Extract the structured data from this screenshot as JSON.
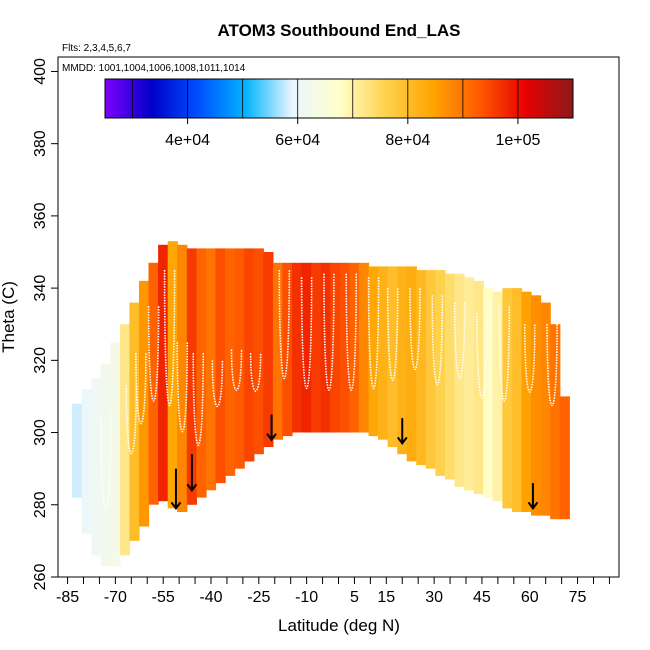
{
  "chart_data": {
    "type": "heatmap",
    "title": "ATOM3 Southbound End_LAS",
    "subtitle_flights": "Flts: 2,3,4,5,6,7",
    "subtitle_dates": "MMDD: 1001,1004,1006,1008,1011,1014",
    "xlabel": "Latitude (deg N)",
    "ylabel": "Theta (C)",
    "xlim": [
      -88,
      88
    ],
    "ylim": [
      260,
      404
    ],
    "x_ticks": [
      -85,
      -70,
      -55,
      -40,
      -25,
      -10,
      5,
      15,
      30,
      45,
      60,
      75
    ],
    "y_ticks": [
      260,
      280,
      300,
      320,
      340,
      360,
      380,
      400
    ],
    "colorbar": {
      "range": [
        25000,
        110000
      ],
      "ticks": [
        40000,
        60000,
        80000,
        100000
      ],
      "tick_labels": [
        "4e+04",
        "6e+04",
        "8e+04",
        "1e+05"
      ],
      "colors": [
        "#7f00ff",
        "#0000c8",
        "#0050ff",
        "#00b4ff",
        "#eaf6ff",
        "#ffffcc",
        "#ffd24d",
        "#ffa500",
        "#ff5a00",
        "#e60000",
        "#8b1a1a"
      ]
    },
    "columns": [
      {
        "lat": -82,
        "bot": 282,
        "top": 308,
        "value": 58000
      },
      {
        "lat": -79,
        "bot": 272,
        "top": 312,
        "value": 60000
      },
      {
        "lat": -76,
        "bot": 266,
        "top": 315,
        "value": 61000
      },
      {
        "lat": -73,
        "bot": 263,
        "top": 319,
        "value": 62000
      },
      {
        "lat": -70,
        "bot": 263,
        "top": 325,
        "value": 63000
      },
      {
        "lat": -67,
        "bot": 266,
        "top": 330,
        "value": 72000
      },
      {
        "lat": -64,
        "bot": 270,
        "top": 336,
        "value": 80000
      },
      {
        "lat": -61,
        "bot": 274,
        "top": 342,
        "value": 86000
      },
      {
        "lat": -58,
        "bot": 280,
        "top": 347,
        "value": 92000
      },
      {
        "lat": -55,
        "bot": 281,
        "top": 352,
        "value": 98000
      },
      {
        "lat": -52,
        "bot": 279,
        "top": 353,
        "value": 84000
      },
      {
        "lat": -49,
        "bot": 278,
        "top": 352,
        "value": 88000
      },
      {
        "lat": -46,
        "bot": 280,
        "top": 351,
        "value": 96000
      },
      {
        "lat": -43,
        "bot": 282,
        "top": 351,
        "value": 92000
      },
      {
        "lat": -40,
        "bot": 284,
        "top": 351,
        "value": 90000
      },
      {
        "lat": -37,
        "bot": 286,
        "top": 351,
        "value": 94000
      },
      {
        "lat": -34,
        "bot": 288,
        "top": 351,
        "value": 92000
      },
      {
        "lat": -31,
        "bot": 290,
        "top": 351,
        "value": 93000
      },
      {
        "lat": -28,
        "bot": 292,
        "top": 351,
        "value": 95000
      },
      {
        "lat": -25,
        "bot": 294,
        "top": 351,
        "value": 94000
      },
      {
        "lat": -22,
        "bot": 296,
        "top": 350,
        "value": 96000
      },
      {
        "lat": -19,
        "bot": 298,
        "top": 347,
        "value": 90000
      },
      {
        "lat": -16,
        "bot": 299,
        "top": 347,
        "value": 94000
      },
      {
        "lat": -13,
        "bot": 300,
        "top": 347,
        "value": 97000
      },
      {
        "lat": -10,
        "bot": 300,
        "top": 347,
        "value": 98000
      },
      {
        "lat": -7,
        "bot": 300,
        "top": 347,
        "value": 96000
      },
      {
        "lat": -4,
        "bot": 300,
        "top": 347,
        "value": 97000
      },
      {
        "lat": -1,
        "bot": 300,
        "top": 347,
        "value": 95000
      },
      {
        "lat": 2,
        "bot": 300,
        "top": 347,
        "value": 94000
      },
      {
        "lat": 5,
        "bot": 300,
        "top": 347,
        "value": 92000
      },
      {
        "lat": 8,
        "bot": 300,
        "top": 347,
        "value": 88000
      },
      {
        "lat": 11,
        "bot": 299,
        "top": 346,
        "value": 84000
      },
      {
        "lat": 14,
        "bot": 298,
        "top": 346,
        "value": 82000
      },
      {
        "lat": 17,
        "bot": 296,
        "top": 346,
        "value": 80000
      },
      {
        "lat": 20,
        "bot": 294,
        "top": 346,
        "value": 82000
      },
      {
        "lat": 23,
        "bot": 292,
        "top": 346,
        "value": 83000
      },
      {
        "lat": 26,
        "bot": 291,
        "top": 345,
        "value": 81000
      },
      {
        "lat": 29,
        "bot": 290,
        "top": 345,
        "value": 78000
      },
      {
        "lat": 32,
        "bot": 288,
        "top": 345,
        "value": 76000
      },
      {
        "lat": 35,
        "bot": 287,
        "top": 344,
        "value": 74000
      },
      {
        "lat": 38,
        "bot": 285,
        "top": 344,
        "value": 72000
      },
      {
        "lat": 41,
        "bot": 284,
        "top": 343,
        "value": 71000
      },
      {
        "lat": 44,
        "bot": 283,
        "top": 342,
        "value": 72000
      },
      {
        "lat": 47,
        "bot": 282,
        "top": 340,
        "value": 68000
      },
      {
        "lat": 50,
        "bot": 281,
        "top": 339,
        "value": 70000
      },
      {
        "lat": 53,
        "bot": 279,
        "top": 340,
        "value": 78000
      },
      {
        "lat": 56,
        "bot": 278,
        "top": 340,
        "value": 80000
      },
      {
        "lat": 59,
        "bot": 278,
        "top": 339,
        "value": 85000
      },
      {
        "lat": 62,
        "bot": 277,
        "top": 338,
        "value": 87000
      },
      {
        "lat": 65,
        "bot": 277,
        "top": 336,
        "value": 88000
      },
      {
        "lat": 68,
        "bot": 276,
        "top": 330,
        "value": 90000
      },
      {
        "lat": 71,
        "bot": 276,
        "top": 310,
        "value": 92000
      }
    ],
    "arrows": [
      {
        "lat": -51,
        "top": 290,
        "bot": 279
      },
      {
        "lat": -46,
        "top": 294,
        "bot": 284
      },
      {
        "lat": -21,
        "top": 305,
        "bot": 298
      },
      {
        "lat": 20,
        "top": 304,
        "bot": 297
      },
      {
        "lat": 61,
        "top": 286,
        "bot": 279
      }
    ],
    "tropopause_loops": [
      {
        "lat": -73,
        "top": 305,
        "bot": 270
      },
      {
        "lat": -65,
        "top": 313,
        "bot": 288
      },
      {
        "lat": -62,
        "top": 322,
        "bot": 296
      },
      {
        "lat": -58,
        "top": 335,
        "bot": 300
      },
      {
        "lat": -53,
        "top": 345,
        "bot": 295
      },
      {
        "lat": -49,
        "top": 325,
        "bot": 292
      },
      {
        "lat": -44,
        "top": 322,
        "bot": 288
      },
      {
        "lat": -38,
        "top": 320,
        "bot": 303
      },
      {
        "lat": -32,
        "top": 323,
        "bot": 308
      },
      {
        "lat": -26,
        "top": 322,
        "bot": 308
      },
      {
        "lat": -17,
        "top": 345,
        "bot": 305
      },
      {
        "lat": -10,
        "top": 343,
        "bot": 302
      },
      {
        "lat": -3,
        "top": 344,
        "bot": 301
      },
      {
        "lat": 4,
        "top": 344,
        "bot": 301
      },
      {
        "lat": 11,
        "top": 343,
        "bot": 302
      },
      {
        "lat": 17,
        "top": 340,
        "bot": 306
      },
      {
        "lat": 24,
        "top": 340,
        "bot": 310
      },
      {
        "lat": 31,
        "top": 338,
        "bot": 305
      },
      {
        "lat": 38,
        "top": 336,
        "bot": 308
      },
      {
        "lat": 45,
        "top": 333,
        "bot": 302
      },
      {
        "lat": 52,
        "top": 335,
        "bot": 300
      },
      {
        "lat": 60,
        "top": 330,
        "bot": 305
      },
      {
        "lat": 67,
        "top": 330,
        "bot": 300
      }
    ]
  }
}
